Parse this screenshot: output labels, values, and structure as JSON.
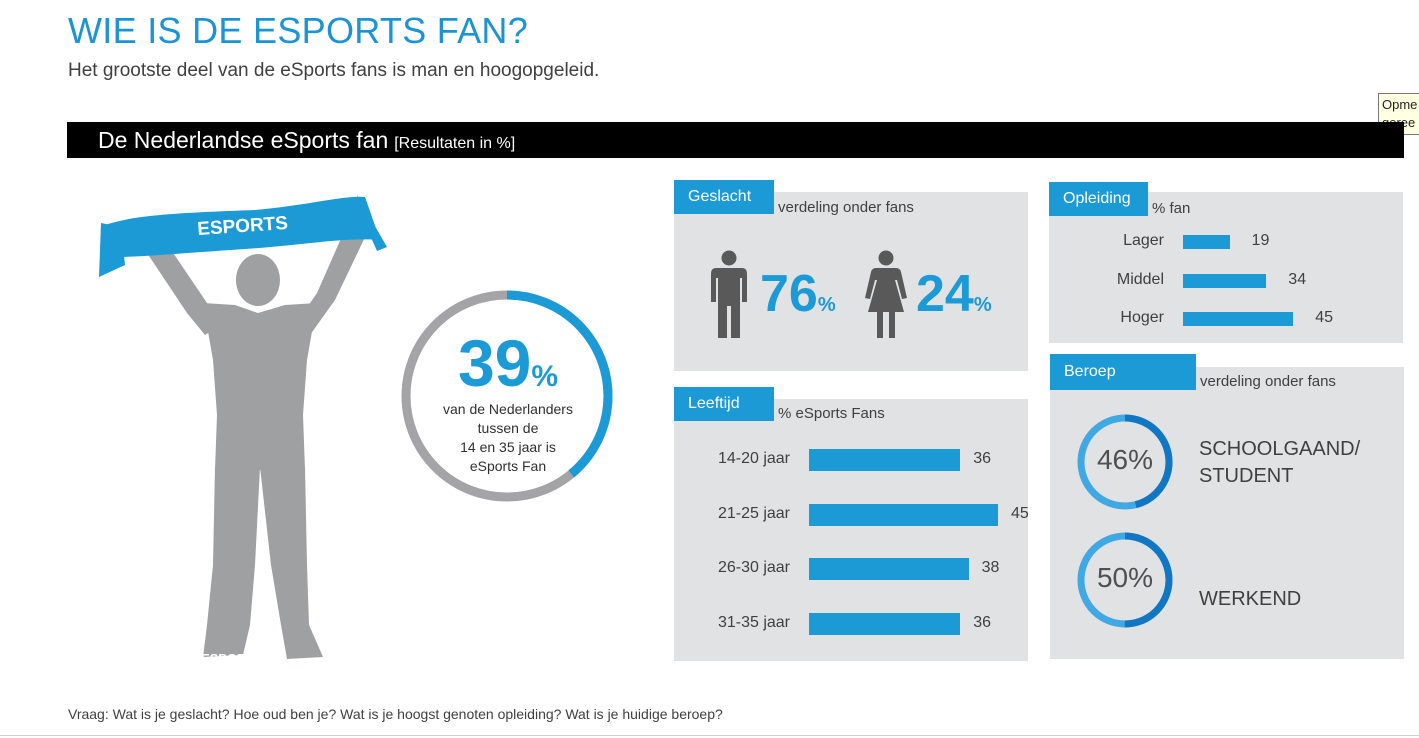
{
  "title": "WIE IS DE ESPORTS FAN?",
  "subtitle": "Het grootste deel van de eSports fans is man en hoogopgeleid.",
  "tooltip_text": "Opme\ngeree",
  "banner": {
    "title": "De Nederlandse eSports fan",
    "note": "[Resultaten in %]"
  },
  "figure": {
    "scarf_text": "ESPORTS",
    "shirt_text": "ESPORTS"
  },
  "headline_stat": {
    "value": "39",
    "unit": "%",
    "fraction": 0.39,
    "line1": "van de Nederlanders",
    "line2": "tussen de",
    "line3": "14 en 35 jaar is",
    "line4": "eSports Fan"
  },
  "colors": {
    "accent": "#1b9ad6",
    "grey_ring": "#a4a4a6",
    "panel": "#e1e2e4",
    "silhouette": "#9fa0a2"
  },
  "chart_data": [
    {
      "type": "bar",
      "panel": "Geslacht",
      "caption": "verdeling onder fans",
      "categories": [
        "man",
        "vrouw"
      ],
      "values": [
        76,
        24
      ],
      "display": [
        {
          "value": "76",
          "unit": "%",
          "icon": "male-icon"
        },
        {
          "value": "24",
          "unit": "%",
          "icon": "female-icon"
        }
      ]
    },
    {
      "type": "bar",
      "panel": "Opleiding",
      "caption": "% fan",
      "categories": [
        "Lager",
        "Middel",
        "Hoger"
      ],
      "values": [
        19,
        34,
        45
      ],
      "value_labels": [
        "19",
        "34",
        "45"
      ]
    },
    {
      "type": "bar",
      "panel": "Leeftijd",
      "caption": "% eSports Fans",
      "categories": [
        "14-20 jaar",
        "21-25 jaar",
        "26-30 jaar",
        "31-35 jaar"
      ],
      "values": [
        36,
        45,
        38,
        36
      ],
      "value_labels": [
        "36",
        "45",
        "38",
        "36"
      ]
    },
    {
      "type": "pie",
      "panel": "Beroep",
      "caption": "verdeling onder fans",
      "categories": [
        "SCHOOLGAAND/\nSTUDENT",
        "WERKEND"
      ],
      "values": [
        46,
        50
      ],
      "value_labels": [
        "46%",
        "50%"
      ]
    }
  ],
  "footer": "Vraag: Wat is je geslacht? Hoe oud ben je? Wat is je hoogst genoten opleiding? Wat is je huidige beroep?"
}
